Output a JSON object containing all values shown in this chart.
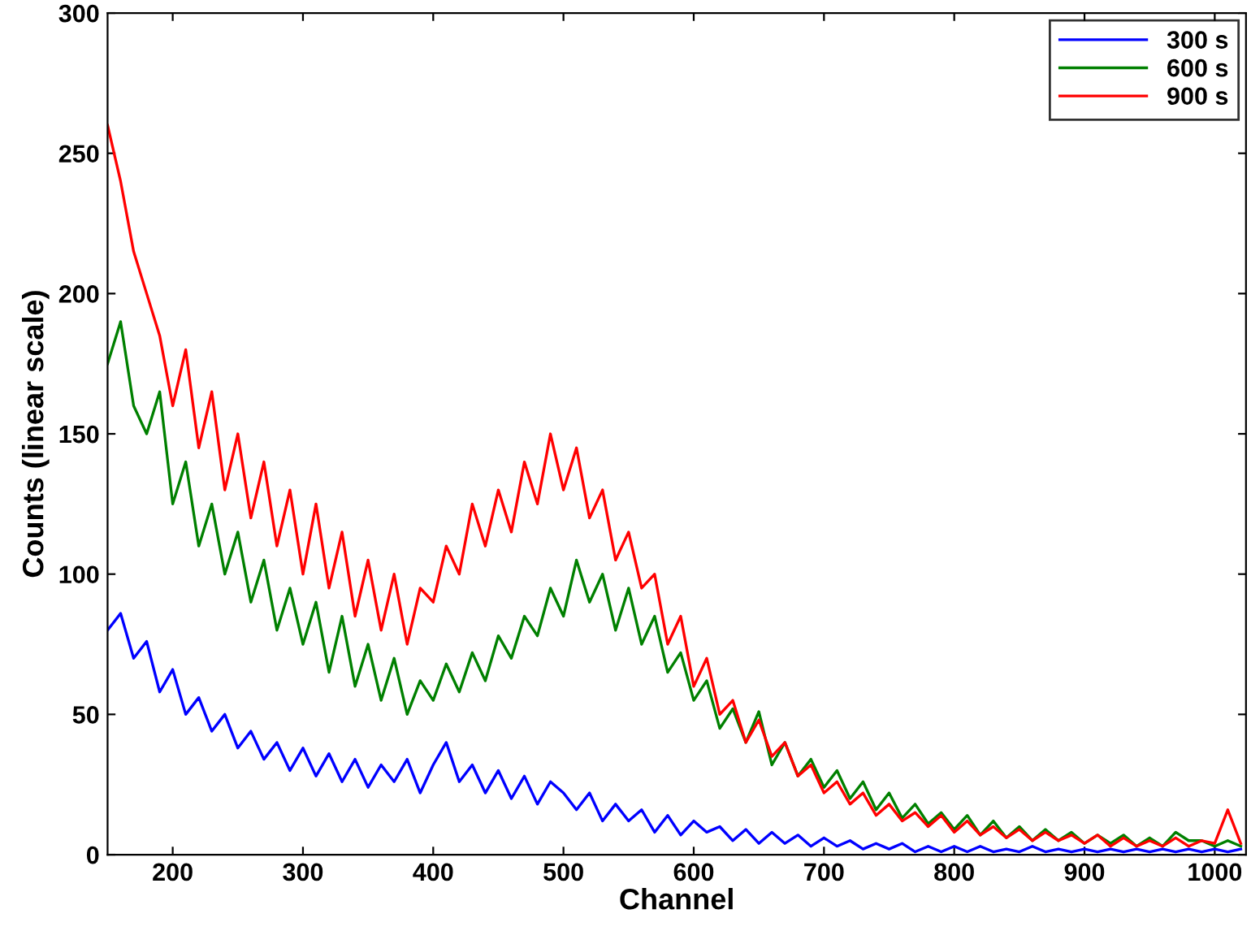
{
  "chart_data": {
    "type": "line",
    "xlabel": "Channel",
    "ylabel": "Counts (linear scale)",
    "x": [
      150,
      160,
      170,
      180,
      190,
      200,
      210,
      220,
      230,
      240,
      250,
      260,
      270,
      280,
      290,
      300,
      310,
      320,
      330,
      340,
      350,
      360,
      370,
      380,
      390,
      400,
      410,
      420,
      430,
      440,
      450,
      460,
      470,
      480,
      490,
      500,
      510,
      520,
      530,
      540,
      550,
      560,
      570,
      580,
      590,
      600,
      610,
      620,
      630,
      640,
      650,
      660,
      670,
      680,
      690,
      700,
      710,
      720,
      730,
      740,
      750,
      760,
      770,
      780,
      790,
      800,
      810,
      820,
      830,
      840,
      850,
      860,
      870,
      880,
      890,
      900,
      910,
      920,
      930,
      940,
      950,
      960,
      970,
      980,
      990,
      1000,
      1010,
      1020
    ],
    "series": [
      {
        "name": "300 s",
        "color": "#0000ff",
        "values": [
          80,
          86,
          70,
          76,
          58,
          66,
          50,
          56,
          44,
          50,
          38,
          44,
          34,
          40,
          30,
          38,
          28,
          36,
          26,
          34,
          24,
          32,
          26,
          34,
          22,
          32,
          40,
          26,
          32,
          22,
          30,
          20,
          28,
          18,
          26,
          22,
          16,
          22,
          12,
          18,
          12,
          16,
          8,
          14,
          7,
          12,
          8,
          10,
          5,
          9,
          4,
          8,
          4,
          7,
          3,
          6,
          3,
          5,
          2,
          4,
          2,
          4,
          1,
          3,
          1,
          3,
          1,
          3,
          1,
          2,
          1,
          3,
          1,
          2,
          1,
          2,
          1,
          2,
          1,
          2,
          1,
          2,
          1,
          2,
          1,
          2,
          1,
          2
        ]
      },
      {
        "name": "600 s",
        "color": "#008000",
        "values": [
          175,
          190,
          160,
          150,
          165,
          125,
          140,
          110,
          125,
          100,
          115,
          90,
          105,
          80,
          95,
          75,
          90,
          65,
          85,
          60,
          75,
          55,
          70,
          50,
          62,
          55,
          68,
          58,
          72,
          62,
          78,
          70,
          85,
          78,
          95,
          85,
          105,
          90,
          100,
          80,
          95,
          75,
          85,
          65,
          72,
          55,
          62,
          45,
          52,
          40,
          51,
          32,
          40,
          28,
          34,
          24,
          30,
          20,
          26,
          16,
          22,
          13,
          18,
          11,
          15,
          9,
          14,
          7,
          12,
          6,
          10,
          5,
          9,
          5,
          8,
          4,
          7,
          4,
          7,
          3,
          6,
          3,
          8,
          5,
          5,
          3,
          5,
          3
        ]
      },
      {
        "name": "900 s",
        "color": "#ff0000",
        "values": [
          260,
          240,
          215,
          200,
          185,
          160,
          180,
          145,
          165,
          130,
          150,
          120,
          140,
          110,
          130,
          100,
          125,
          95,
          115,
          85,
          105,
          80,
          100,
          75,
          95,
          90,
          110,
          100,
          125,
          110,
          130,
          115,
          140,
          125,
          150,
          130,
          145,
          120,
          130,
          105,
          115,
          95,
          100,
          75,
          85,
          60,
          70,
          50,
          55,
          40,
          48,
          35,
          40,
          28,
          32,
          22,
          26,
          18,
          22,
          14,
          18,
          12,
          15,
          10,
          14,
          8,
          12,
          7,
          10,
          6,
          9,
          5,
          8,
          5,
          7,
          4,
          7,
          3,
          6,
          3,
          5,
          3,
          6,
          3,
          5,
          4,
          16,
          4
        ]
      }
    ],
    "xlim": [
      150,
      1024
    ],
    "xticks": [
      200,
      300,
      400,
      500,
      600,
      700,
      800,
      900,
      1000
    ],
    "ylim": [
      0,
      300
    ],
    "yticks": [
      0,
      50,
      100,
      150,
      200,
      250,
      300
    ],
    "grid": false,
    "legend": "top right"
  }
}
